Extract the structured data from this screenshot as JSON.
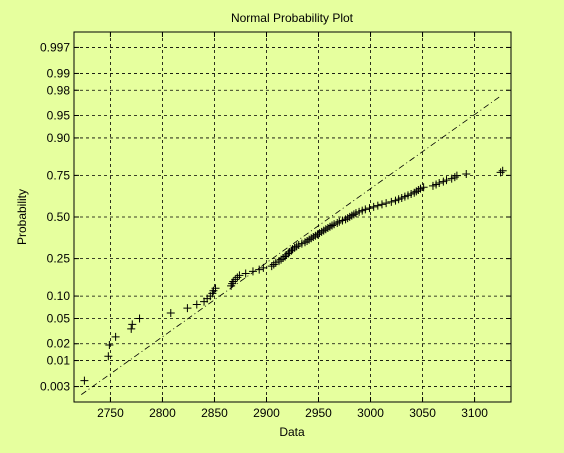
{
  "window": {
    "background": "#e6ff9e"
  },
  "chart_data": {
    "type": "scatter",
    "title": "Normal Probability Plot",
    "xlabel": "Data",
    "ylabel": "Probability",
    "xlim": [
      2715,
      3135
    ],
    "x_ticks": [
      2750,
      2800,
      2850,
      2900,
      2950,
      3000,
      3050,
      3100
    ],
    "y_ticks": [
      {
        "p": 0.003,
        "label": "0.003"
      },
      {
        "p": 0.01,
        "label": "0.01"
      },
      {
        "p": 0.02,
        "label": "0.02"
      },
      {
        "p": 0.05,
        "label": "0.05"
      },
      {
        "p": 0.1,
        "label": "0.10"
      },
      {
        "p": 0.25,
        "label": "0.25"
      },
      {
        "p": 0.5,
        "label": "0.50"
      },
      {
        "p": 0.75,
        "label": "0.75"
      },
      {
        "p": 0.9,
        "label": "0.90"
      },
      {
        "p": 0.95,
        "label": "0.95"
      },
      {
        "p": 0.98,
        "label": "0.98"
      },
      {
        "p": 0.99,
        "label": "0.99"
      },
      {
        "p": 0.997,
        "label": "0.997"
      }
    ],
    "y_scale": "normal-probability",
    "grid": true,
    "marker": "+",
    "plot_background": "#e6ff9e",
    "reference_line": {
      "style": "dash-dot",
      "from": [
        2722,
        0.002
      ],
      "to": [
        3125,
        0.975
      ]
    },
    "x": [
      2725,
      2748,
      2749,
      2755,
      2770,
      2771,
      2778,
      2808,
      2824,
      2833,
      2840,
      2843,
      2846,
      2848,
      2849,
      2851,
      2866,
      2867,
      2868,
      2870,
      2872,
      2874,
      2880,
      2887,
      2893,
      2897,
      2905,
      2907,
      2909,
      2912,
      2914,
      2916,
      2918,
      2919,
      2921,
      2922,
      2924,
      2925,
      2927,
      2929,
      2931,
      2934,
      2937,
      2939,
      2941,
      2943,
      2945,
      2947,
      2949,
      2951,
      2953,
      2955,
      2957,
      2959,
      2961,
      2963,
      2965,
      2968,
      2970,
      2973,
      2976,
      2978,
      2980,
      2982,
      2984,
      2986,
      2989,
      2992,
      2995,
      2999,
      3003,
      3007,
      3011,
      3015,
      3020,
      3024,
      3027,
      3030,
      3033,
      3036,
      3039,
      3042,
      3044,
      3046,
      3048,
      3051,
      3060,
      3063,
      3066,
      3070,
      3073,
      3078,
      3081,
      3083,
      3092,
      3125,
      3127
    ],
    "y": [
      0.004,
      0.012,
      0.019,
      0.026,
      0.035,
      0.041,
      0.05,
      0.06,
      0.07,
      0.078,
      0.085,
      0.093,
      0.1,
      0.108,
      0.116,
      0.124,
      0.132,
      0.14,
      0.148,
      0.156,
      0.164,
      0.172,
      0.18,
      0.189,
      0.197,
      0.205,
      0.213,
      0.221,
      0.229,
      0.237,
      0.245,
      0.253,
      0.261,
      0.269,
      0.277,
      0.285,
      0.293,
      0.301,
      0.309,
      0.317,
      0.325,
      0.333,
      0.341,
      0.349,
      0.357,
      0.365,
      0.373,
      0.381,
      0.389,
      0.397,
      0.405,
      0.413,
      0.421,
      0.429,
      0.437,
      0.445,
      0.453,
      0.461,
      0.469,
      0.477,
      0.485,
      0.493,
      0.501,
      0.509,
      0.517,
      0.525,
      0.533,
      0.541,
      0.549,
      0.557,
      0.565,
      0.573,
      0.581,
      0.589,
      0.597,
      0.605,
      0.613,
      0.621,
      0.629,
      0.637,
      0.645,
      0.653,
      0.661,
      0.669,
      0.677,
      0.685,
      0.693,
      0.701,
      0.709,
      0.717,
      0.725,
      0.733,
      0.741,
      0.749,
      0.757,
      0.765,
      0.773
    ]
  }
}
